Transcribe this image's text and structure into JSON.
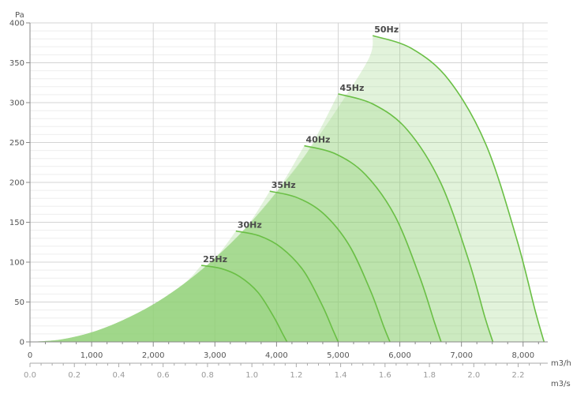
{
  "chart_data": {
    "type": "line",
    "title": "",
    "ylabel": "Pa",
    "xlabel_primary": "m3/h",
    "xlabel_secondary": "m3/s",
    "xlim": [
      0,
      8400
    ],
    "ylim": [
      0,
      400
    ],
    "grid": true,
    "yticks": [
      0,
      50,
      100,
      150,
      200,
      250,
      300,
      350,
      400
    ],
    "ytick_labels": [
      "0",
      "50",
      "100",
      "150",
      "200",
      "250",
      "300",
      "350",
      "400"
    ],
    "xticks": [
      0,
      1000,
      2000,
      3000,
      4000,
      5000,
      6000,
      7000,
      8000
    ],
    "xtick_labels": [
      "0",
      "1,000",
      "2,000",
      "3,000",
      "4,000",
      "5,000",
      "6,000",
      "7,000",
      "8,000"
    ],
    "x2ticks": [
      0.0,
      0.2,
      0.4,
      0.6,
      0.8,
      1.0,
      1.2,
      1.4,
      1.6,
      1.8,
      2.0,
      2.2
    ],
    "x2tick_labels": [
      "0.0",
      "0.2",
      "0.4",
      "0.6",
      "0.8",
      "1.0",
      "1.2",
      "1.4",
      "1.6",
      "1.8",
      "2.0",
      "2.2"
    ],
    "colors": {
      "curve": "#6abf45",
      "envelope_fill": "#8fcf73",
      "grid": "#dddddd",
      "axis": "#888888"
    },
    "envelope": {
      "x": [
        0,
        500,
        1000,
        1500,
        2000,
        2500,
        3000,
        3500,
        4000,
        4500,
        5000,
        5500,
        5600
      ],
      "y": [
        0,
        3,
        12,
        27,
        47,
        73,
        105,
        143,
        188,
        238,
        294,
        356,
        385
      ]
    },
    "series": [
      {
        "name": "25Hz",
        "x": [
          2780,
          3100,
          3400,
          3700,
          3950,
          4100,
          4170
        ],
        "y": [
          96,
          92,
          82,
          62,
          32,
          10,
          0
        ]
      },
      {
        "name": "30Hz",
        "x": [
          3340,
          3720,
          4080,
          4440,
          4740,
          4920,
          5000
        ],
        "y": [
          139,
          133,
          118,
          89,
          46,
          14,
          0
        ]
      },
      {
        "name": "35Hz",
        "x": [
          3890,
          4330,
          4760,
          5180,
          5530,
          5740,
          5840
        ],
        "y": [
          189,
          181,
          161,
          121,
          63,
          19,
          0
        ]
      },
      {
        "name": "40Hz",
        "x": [
          4450,
          4950,
          5440,
          5920,
          6320,
          6560,
          6670
        ],
        "y": [
          246,
          236,
          210,
          158,
          82,
          25,
          0
        ]
      },
      {
        "name": "45Hz",
        "x": [
          5000,
          5570,
          6120,
          6660,
          7110,
          7380,
          7510
        ],
        "y": [
          311,
          298,
          266,
          200,
          104,
          31,
          0
        ]
      },
      {
        "name": "50Hz",
        "x": [
          5560,
          6190,
          6800,
          7400,
          7900,
          8200,
          8340
        ],
        "y": [
          384,
          368,
          328,
          247,
          128,
          38,
          0
        ]
      }
    ]
  }
}
